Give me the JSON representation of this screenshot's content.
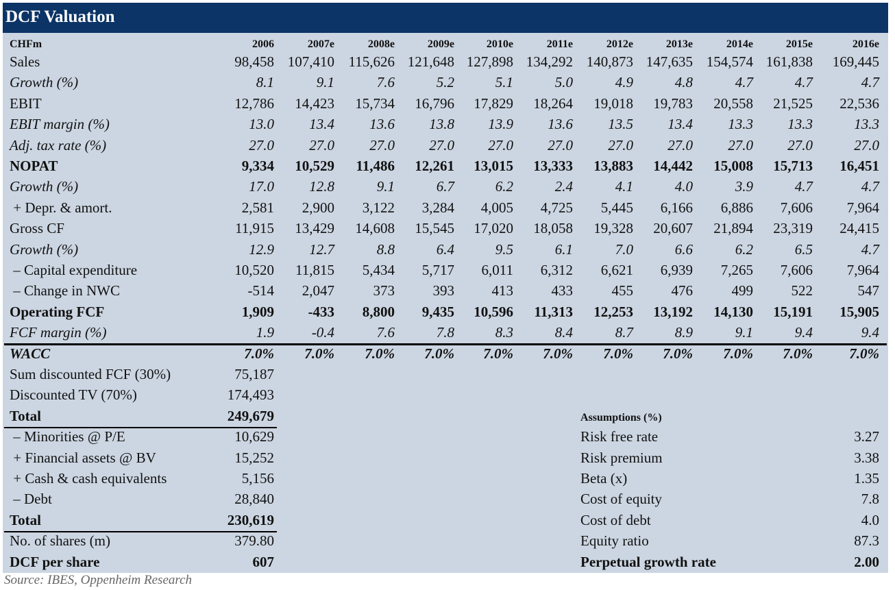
{
  "title": "DCF Valuation",
  "unit_label": "CHFm",
  "years": [
    "2006",
    "2007e",
    "2008e",
    "2009e",
    "2010e",
    "2011e",
    "2012e",
    "2013e",
    "2014e",
    "2015e",
    "2016e"
  ],
  "rows": [
    {
      "label": "Sales",
      "style": "n",
      "values": [
        "98,458",
        "107,410",
        "115,626",
        "121,648",
        "127,898",
        "134,292",
        "140,873",
        "147,635",
        "154,574",
        "161,838",
        "169,445"
      ]
    },
    {
      "label": "Growth (%)",
      "style": "i",
      "values": [
        "8.1",
        "9.1",
        "7.6",
        "5.2",
        "5.1",
        "5.0",
        "4.9",
        "4.8",
        "4.7",
        "4.7",
        "4.7"
      ]
    },
    {
      "label": "EBIT",
      "style": "n",
      "values": [
        "12,786",
        "14,423",
        "15,734",
        "16,796",
        "17,829",
        "18,264",
        "19,018",
        "19,783",
        "20,558",
        "21,525",
        "22,536"
      ]
    },
    {
      "label": "EBIT margin (%)",
      "style": "i",
      "values": [
        "13.0",
        "13.4",
        "13.6",
        "13.8",
        "13.9",
        "13.6",
        "13.5",
        "13.4",
        "13.3",
        "13.3",
        "13.3"
      ]
    },
    {
      "label": "Adj. tax rate (%)",
      "style": "i",
      "values": [
        "27.0",
        "27.0",
        "27.0",
        "27.0",
        "27.0",
        "27.0",
        "27.0",
        "27.0",
        "27.0",
        "27.0",
        "27.0"
      ]
    },
    {
      "label": "NOPAT",
      "style": "b",
      "values": [
        "9,334",
        "10,529",
        "11,486",
        "12,261",
        "13,015",
        "13,333",
        "13,883",
        "14,442",
        "15,008",
        "15,713",
        "16,451"
      ]
    },
    {
      "label": "Growth (%)",
      "style": "i",
      "values": [
        "17.0",
        "12.8",
        "9.1",
        "6.7",
        "6.2",
        "2.4",
        "4.1",
        "4.0",
        "3.9",
        "4.7",
        "4.7"
      ]
    },
    {
      "label": " + Depr. & amort.",
      "style": "n",
      "values": [
        "2,581",
        "2,900",
        "3,122",
        "3,284",
        "4,005",
        "4,725",
        "5,445",
        "6,166",
        "6,886",
        "7,606",
        "7,964"
      ]
    },
    {
      "label": "Gross CF",
      "style": "n",
      "values": [
        "11,915",
        "13,429",
        "14,608",
        "15,545",
        "17,020",
        "18,058",
        "19,328",
        "20,607",
        "21,894",
        "23,319",
        "24,415"
      ]
    },
    {
      "label": "Growth (%)",
      "style": "i",
      "values": [
        "12.9",
        "12.7",
        "8.8",
        "6.4",
        "9.5",
        "6.1",
        "7.0",
        "6.6",
        "6.2",
        "6.5",
        "4.7"
      ]
    },
    {
      "label": " – Capital expenditure",
      "style": "n",
      "values": [
        "10,520",
        "11,815",
        "5,434",
        "5,717",
        "6,011",
        "6,312",
        "6,621",
        "6,939",
        "7,265",
        "7,606",
        "7,964"
      ]
    },
    {
      "label": " – Change in NWC",
      "style": "n",
      "values": [
        "-514",
        "2,047",
        "373",
        "393",
        "413",
        "433",
        "455",
        "476",
        "499",
        "522",
        "547"
      ]
    },
    {
      "label": "Operating FCF",
      "style": "b",
      "values": [
        "1,909",
        "-433",
        "8,800",
        "9,435",
        "10,596",
        "11,313",
        "12,253",
        "13,192",
        "14,130",
        "15,191",
        "15,905"
      ]
    },
    {
      "label": "FCF margin (%)",
      "style": "i",
      "values": [
        "1.9",
        "-0.4",
        "7.6",
        "7.8",
        "8.3",
        "8.4",
        "8.7",
        "8.9",
        "9.1",
        "9.4",
        "9.4"
      ]
    },
    {
      "label": "WACC",
      "style": "bi",
      "values": [
        "7.0%",
        "7.0%",
        "7.0%",
        "7.0%",
        "7.0%",
        "7.0%",
        "7.0%",
        "7.0%",
        "7.0%",
        "7.0%",
        "7.0%"
      ]
    }
  ],
  "valuation": [
    {
      "label": "Sum discounted FCF (30%)",
      "value": "75,187",
      "style": "n"
    },
    {
      "label": "Discounted TV (70%)",
      "value": "174,493",
      "style": "n"
    },
    {
      "label": "Total",
      "value": "249,679",
      "style": "b"
    },
    {
      "label": " – Minorities @ P/E",
      "value": "10,629",
      "style": "n"
    },
    {
      "label": " + Financial assets @ BV",
      "value": "15,252",
      "style": "n"
    },
    {
      "label": " + Cash & cash equivalents",
      "value": "5,156",
      "style": "n"
    },
    {
      "label": " – Debt",
      "value": "28,840",
      "style": "n"
    },
    {
      "label": "Total",
      "value": "230,619",
      "style": "b"
    },
    {
      "label": "No. of shares (m)",
      "value": "379.80",
      "style": "n"
    },
    {
      "label": "DCF per share",
      "value": "607",
      "style": "b"
    }
  ],
  "assumptions_title": "Assumptions (%)",
  "assumptions": [
    {
      "label": "Risk free rate",
      "value": "3.27",
      "style": "n"
    },
    {
      "label": "Risk premium",
      "value": "3.38",
      "style": "n"
    },
    {
      "label": "Beta (x)",
      "value": "1.35",
      "style": "n"
    },
    {
      "label": "Cost of equity",
      "value": "7.8",
      "style": "n"
    },
    {
      "label": "Cost of debt",
      "value": "4.0",
      "style": "n"
    },
    {
      "label": "Equity ratio",
      "value": "87.3",
      "style": "n"
    },
    {
      "label": "Perpetual growth rate",
      "value": "2.00",
      "style": "b"
    }
  ],
  "source": "Source: IBES, Oppenheim Research"
}
